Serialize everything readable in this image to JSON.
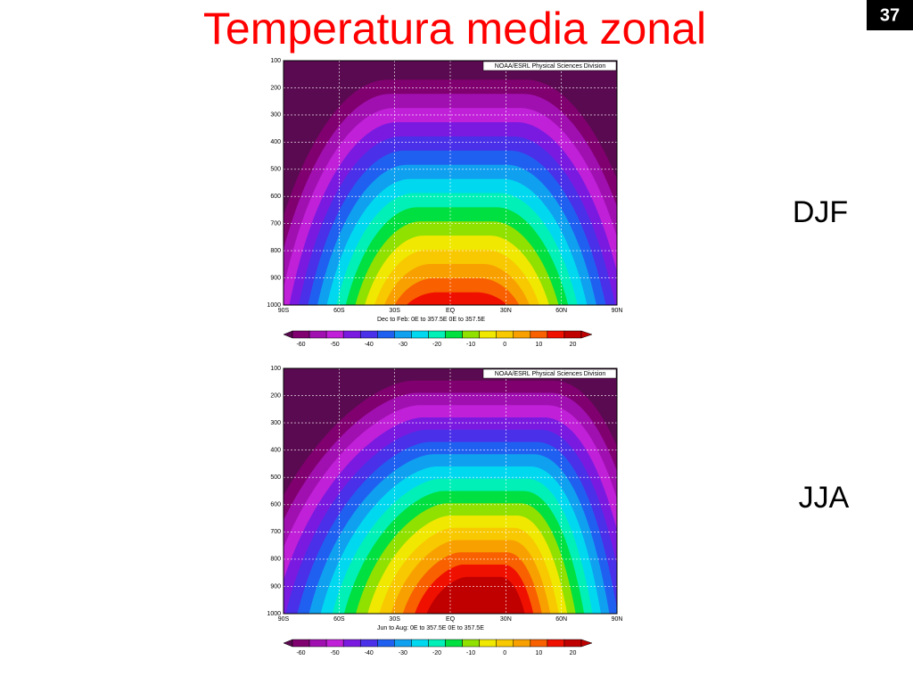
{
  "slide": {
    "title": "Temperatura media zonal",
    "page_number": "37"
  },
  "panels": [
    {
      "label": "DJF",
      "credit": "NOAA/ESRL Physical Sciences Division",
      "subtitle": "Dec to Feb:  0E to 357.5E   0E to 357.5E",
      "y_ticks": [
        "100",
        "200",
        "300",
        "400",
        "500",
        "600",
        "700",
        "800",
        "900",
        "1000"
      ],
      "x_ticks": [
        "90S",
        "60S",
        "30S",
        "EQ",
        "30N",
        "60N",
        "90N"
      ],
      "colorbar_ticks": [
        "-60",
        "-50",
        "-40",
        "-30",
        "-20",
        "-10",
        "0",
        "10",
        "20"
      ]
    },
    {
      "label": "JJA",
      "credit": "NOAA/ESRL Physical Sciences Division",
      "subtitle": "Jun to Aug:  0E to 357.5E   0E to 357.5E",
      "y_ticks": [
        "100",
        "200",
        "300",
        "400",
        "500",
        "600",
        "700",
        "800",
        "900",
        "1000"
      ],
      "x_ticks": [
        "90S",
        "60S",
        "30S",
        "EQ",
        "30N",
        "60N",
        "90N"
      ],
      "colorbar_ticks": [
        "-60",
        "-50",
        "-40",
        "-30",
        "-20",
        "-10",
        "0",
        "10",
        "20"
      ]
    }
  ]
}
